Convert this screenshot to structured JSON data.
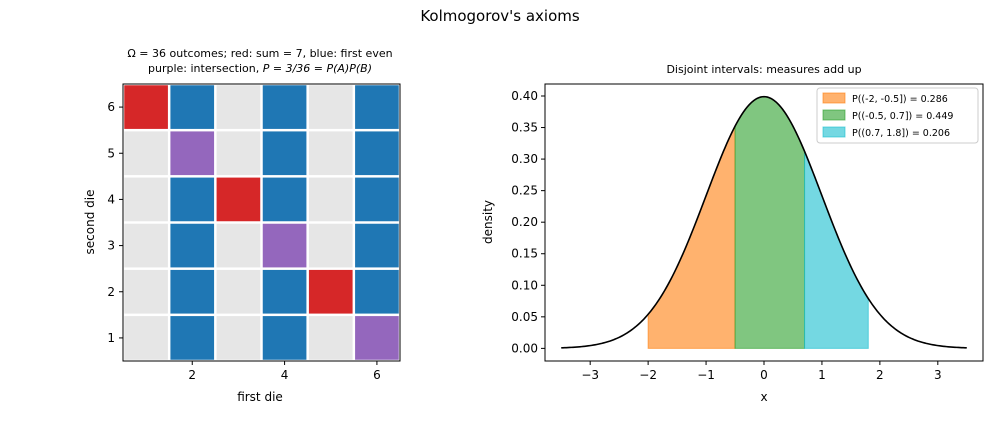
{
  "figure": {
    "title": "Kolmogorov's axioms"
  },
  "colors": {
    "red": "#d62728",
    "blue": "#1f77b4",
    "purple": "#9467bd",
    "gray": "#e6e6e6",
    "orange": "#ff7f0e",
    "green": "#2ca02c",
    "cyan": "#17becf"
  },
  "chart_data": [
    {
      "type": "heatmap",
      "title_line1": "Ω = 36 outcomes; red: sum = 7, blue: first even",
      "title_line2_prefix": "purple: intersection, ",
      "title_line2_math": "P = 3/36 = P(A)P(B)",
      "xlabel": "first die",
      "ylabel": "second die",
      "x_ticks": [
        2,
        4,
        6
      ],
      "y_ticks": [
        1,
        2,
        3,
        4,
        5,
        6
      ],
      "xlim": [
        0.5,
        6.5
      ],
      "ylim": [
        0.5,
        6.5
      ],
      "cells": [
        [
          "gray",
          "blue",
          "gray",
          "blue",
          "gray",
          "purple"
        ],
        [
          "gray",
          "blue",
          "gray",
          "blue",
          "red",
          "blue"
        ],
        [
          "gray",
          "blue",
          "gray",
          "purple",
          "gray",
          "blue"
        ],
        [
          "gray",
          "blue",
          "red",
          "blue",
          "gray",
          "blue"
        ],
        [
          "gray",
          "purple",
          "gray",
          "blue",
          "gray",
          "blue"
        ],
        [
          "red",
          "blue",
          "gray",
          "blue",
          "gray",
          "blue"
        ]
      ],
      "cells_row_order": "second die = 1 to 6, columns first die = 1 to 6"
    },
    {
      "type": "area",
      "title": "Disjoint intervals: measures add up",
      "xlabel": "x",
      "ylabel": "density",
      "xlim": [
        -3.78,
        3.78
      ],
      "ylim": [
        -0.02,
        0.419
      ],
      "x_ticks": [
        -3,
        -2,
        -1,
        0,
        1,
        2,
        3
      ],
      "y_ticks": [
        0.0,
        0.05,
        0.1,
        0.15,
        0.2,
        0.25,
        0.3,
        0.35,
        0.4
      ],
      "curve": {
        "function": "standard normal pdf",
        "x_range": [
          -3.5,
          3.5
        ]
      },
      "series": [
        {
          "name": "P((-2, -0.5]) = 0.286",
          "interval": [
            -2,
            -0.5
          ],
          "color": "orange",
          "value": 0.286
        },
        {
          "name": "P((-0.5, 0.7]) = 0.449",
          "interval": [
            -0.5,
            0.7
          ],
          "color": "green",
          "value": 0.449
        },
        {
          "name": "P((0.7, 1.8]) = 0.206",
          "interval": [
            0.7,
            1.8
          ],
          "color": "cyan",
          "value": 0.206
        }
      ],
      "legend_position": "top-right"
    }
  ]
}
